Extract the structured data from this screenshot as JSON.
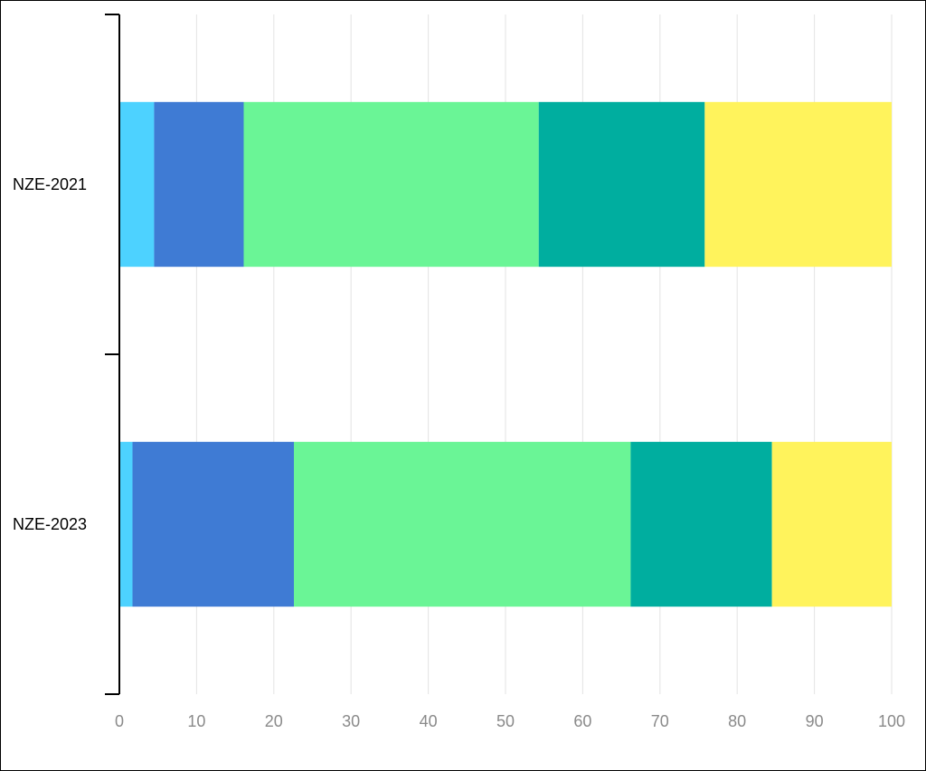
{
  "chart_data": {
    "type": "bar",
    "orientation": "horizontal",
    "stacked": true,
    "title": "",
    "xlabel": "",
    "ylabel": "",
    "xlim": [
      0,
      100
    ],
    "xticks": [
      0,
      10,
      20,
      30,
      40,
      50,
      60,
      70,
      80,
      90,
      100
    ],
    "grid": true,
    "legend": "none",
    "categories": [
      "NZE-2021",
      "NZE-2023"
    ],
    "series": [
      {
        "color": "#4dd2ff",
        "values": [
          4.5,
          1.7
        ]
      },
      {
        "color": "#3f7bd4",
        "values": [
          11.6,
          20.9
        ]
      },
      {
        "color": "#6af596",
        "values": [
          38.2,
          43.6
        ]
      },
      {
        "color": "#00ae9f",
        "values": [
          21.5,
          18.3
        ]
      },
      {
        "color": "#fff35c",
        "values": [
          24.2,
          15.9
        ]
      }
    ]
  }
}
